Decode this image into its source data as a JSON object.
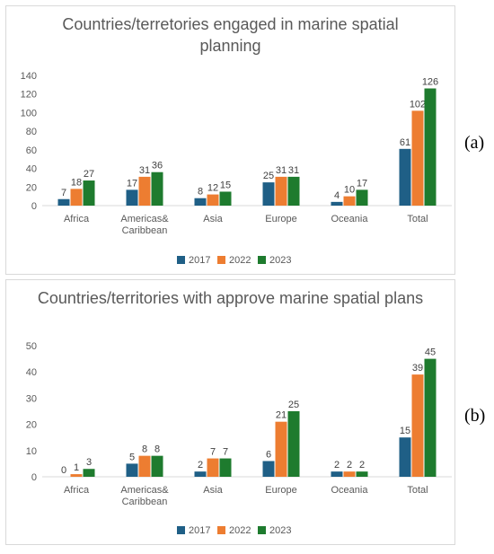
{
  "panel_labels": {
    "a": "(a)",
    "b": "(b)"
  },
  "chart_data": [
    {
      "type": "bar",
      "title": "Countries/terretories engaged in marine spatial planning",
      "categories": [
        [
          "Africa"
        ],
        [
          "Americas&",
          "Caribbean"
        ],
        [
          "Asia"
        ],
        [
          "Europe"
        ],
        [
          "Oceania"
        ],
        [
          "Total"
        ]
      ],
      "series": [
        {
          "name": "2017",
          "color": "#1f5f86",
          "values": [
            7,
            17,
            8,
            25,
            4,
            61
          ]
        },
        {
          "name": "2022",
          "color": "#ed7d31",
          "values": [
            18,
            31,
            12,
            31,
            10,
            102
          ]
        },
        {
          "name": "2023",
          "color": "#1e7b2e",
          "values": [
            27,
            36,
            15,
            31,
            17,
            126
          ]
        }
      ],
      "ylim": [
        0,
        140
      ],
      "yticks": [
        0,
        20,
        40,
        60,
        80,
        100,
        120,
        140
      ],
      "grid": false,
      "legend": "bottom"
    },
    {
      "type": "bar",
      "title": "Countries/territories with approve marine spatial plans",
      "categories": [
        [
          "Africa"
        ],
        [
          "Americas&",
          "Caribbean"
        ],
        [
          "Asia"
        ],
        [
          "Europe"
        ],
        [
          "Oceania"
        ],
        [
          "Total"
        ]
      ],
      "series": [
        {
          "name": "2017",
          "color": "#1f5f86",
          "values": [
            0,
            5,
            2,
            6,
            2,
            15
          ]
        },
        {
          "name": "2022",
          "color": "#ed7d31",
          "values": [
            1,
            8,
            7,
            21,
            2,
            39
          ]
        },
        {
          "name": "2023",
          "color": "#1e7b2e",
          "values": [
            3,
            8,
            7,
            25,
            2,
            45
          ]
        }
      ],
      "ylim": [
        0,
        50
      ],
      "yticks": [
        0,
        10,
        20,
        30,
        40,
        50
      ],
      "grid": false,
      "legend": "bottom"
    }
  ]
}
